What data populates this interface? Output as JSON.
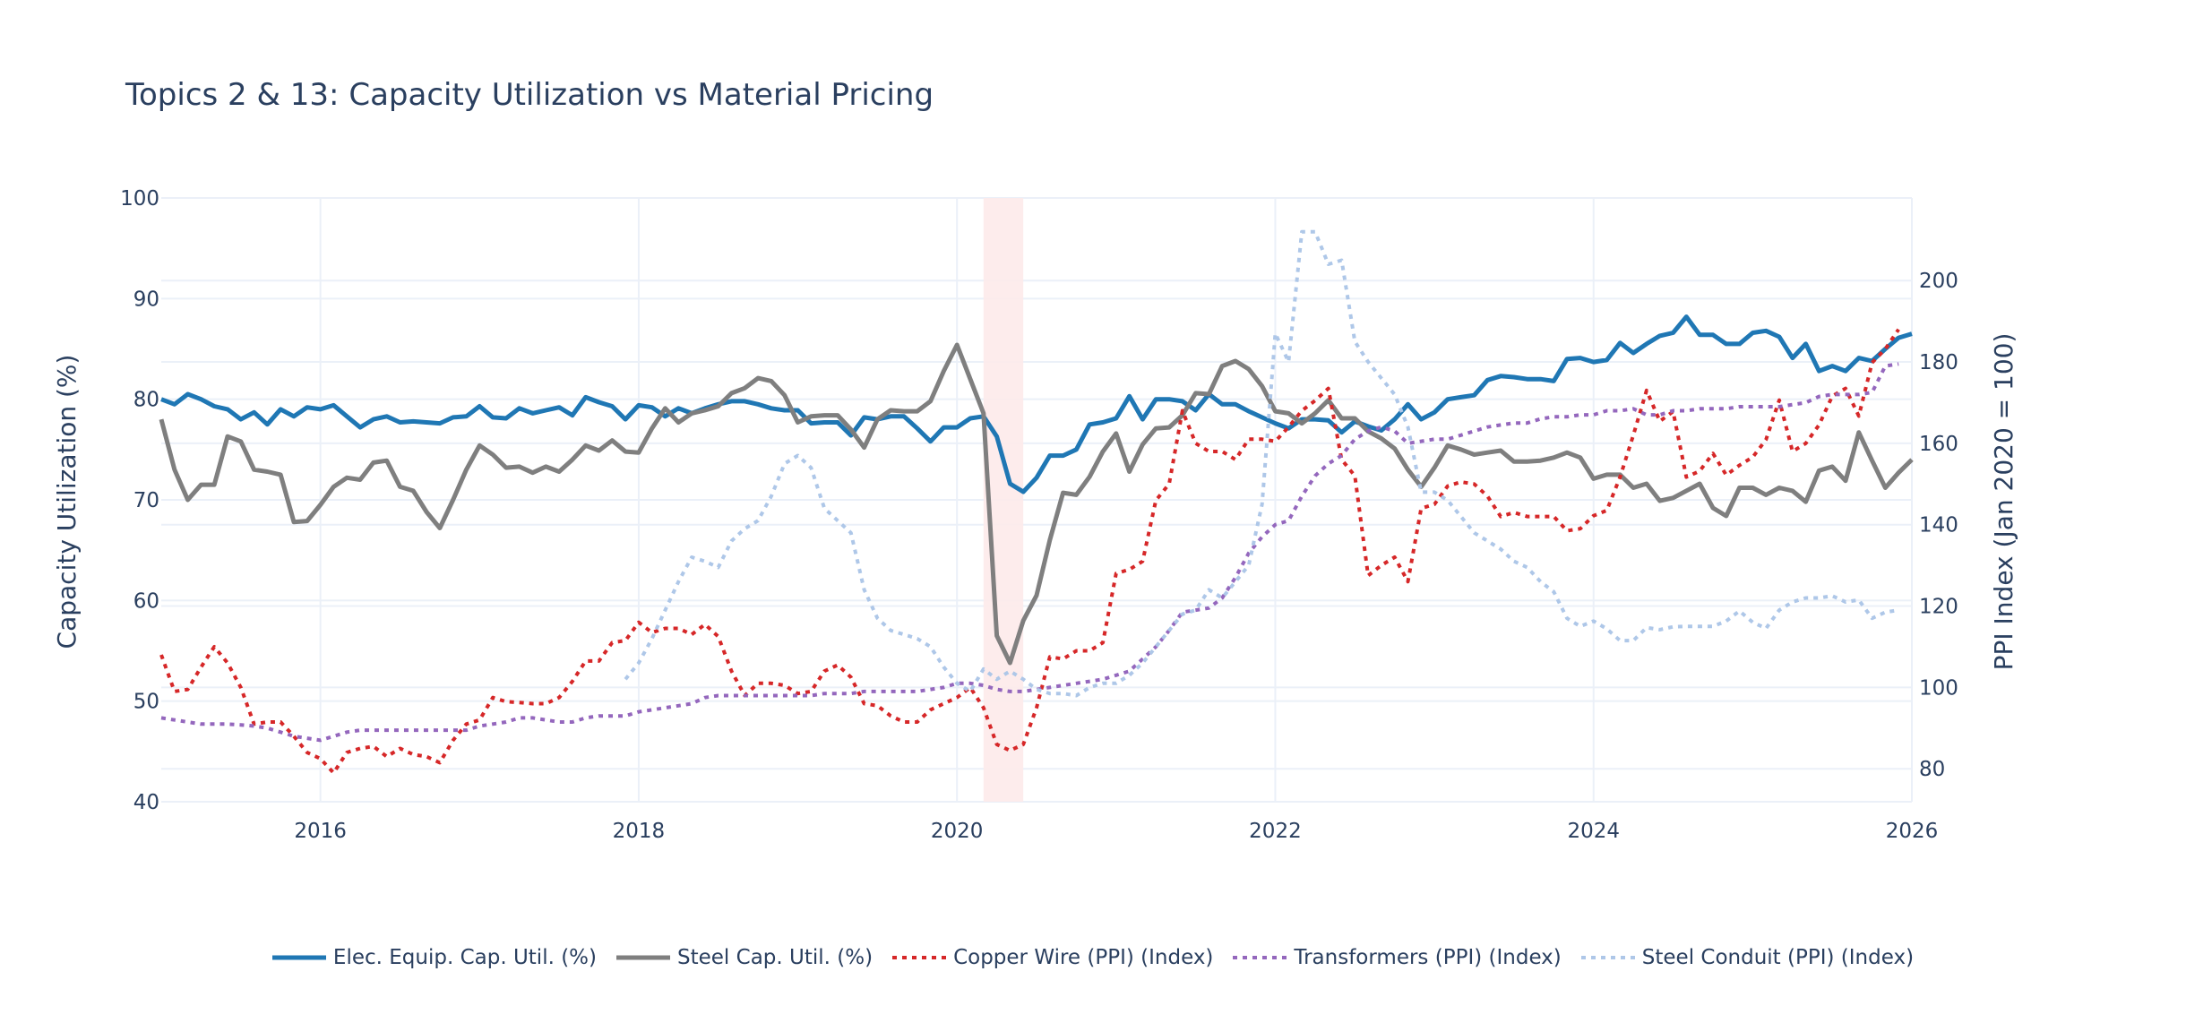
{
  "chart_data": {
    "type": "line",
    "title": "Topics 2 & 13: Capacity Utilization vs Material Pricing",
    "ylabel": "Capacity Utilization (%)",
    "y2label": "PPI Index (Jan 2020 = 100)",
    "xlim": [
      "2015-01",
      "2026-01"
    ],
    "ylim": [
      40,
      100
    ],
    "y2lim": [
      71.9,
      220.3
    ],
    "xticks": [
      "2016",
      "2018",
      "2020",
      "2022",
      "2024",
      "2026"
    ],
    "yticks": [
      "40",
      "50",
      "60",
      "70",
      "80",
      "90",
      "100"
    ],
    "y2ticks": [
      "80",
      "100",
      "120",
      "140",
      "160",
      "180",
      "200"
    ],
    "grid": true,
    "legend_position": "bottom",
    "shaded_period": {
      "start": "2020-03",
      "end": "2020-05",
      "color": "#fdeaea"
    },
    "x": [
      "2015-01",
      "2015-02",
      "2015-03",
      "2015-04",
      "2015-05",
      "2015-06",
      "2015-07",
      "2015-08",
      "2015-09",
      "2015-10",
      "2015-11",
      "2015-12",
      "2016-01",
      "2016-02",
      "2016-03",
      "2016-04",
      "2016-05",
      "2016-06",
      "2016-07",
      "2016-08",
      "2016-09",
      "2016-10",
      "2016-11",
      "2016-12",
      "2017-01",
      "2017-02",
      "2017-03",
      "2017-04",
      "2017-05",
      "2017-06",
      "2017-07",
      "2017-08",
      "2017-09",
      "2017-10",
      "2017-11",
      "2017-12",
      "2018-01",
      "2018-02",
      "2018-03",
      "2018-04",
      "2018-05",
      "2018-06",
      "2018-07",
      "2018-08",
      "2018-09",
      "2018-10",
      "2018-11",
      "2018-12",
      "2019-01",
      "2019-02",
      "2019-03",
      "2019-04",
      "2019-05",
      "2019-06",
      "2019-07",
      "2019-08",
      "2019-09",
      "2019-10",
      "2019-11",
      "2019-12",
      "2020-01",
      "2020-02",
      "2020-03",
      "2020-04",
      "2020-05",
      "2020-06",
      "2020-07",
      "2020-08",
      "2020-09",
      "2020-10",
      "2020-11",
      "2020-12",
      "2021-01",
      "2021-02",
      "2021-03",
      "2021-04",
      "2021-05",
      "2021-06",
      "2021-07",
      "2021-08",
      "2021-09",
      "2021-10",
      "2021-11",
      "2021-12",
      "2022-01",
      "2022-02",
      "2022-03",
      "2022-04",
      "2022-05",
      "2022-06",
      "2022-07",
      "2022-08",
      "2022-09",
      "2022-10",
      "2022-11",
      "2022-12",
      "2023-01",
      "2023-02",
      "2023-03",
      "2023-04",
      "2023-05",
      "2023-06",
      "2023-07",
      "2023-08",
      "2023-09",
      "2023-10",
      "2023-11",
      "2023-12",
      "2024-01",
      "2024-02",
      "2024-03",
      "2024-04",
      "2024-05",
      "2024-06",
      "2024-07",
      "2024-08",
      "2024-09",
      "2024-10",
      "2024-11",
      "2024-12",
      "2025-01",
      "2025-02",
      "2025-03",
      "2025-04",
      "2025-05",
      "2025-06",
      "2025-07",
      "2025-08",
      "2025-09",
      "2025-10",
      "2025-11",
      "2025-12",
      "2026-01"
    ],
    "series": [
      {
        "name": "Elec. Equip. Cap. Util. (%)",
        "axis": "left",
        "color": "#1f77b4",
        "dash": "solid",
        "values": [
          80,
          79.5,
          80.5,
          80,
          79.3,
          79,
          78,
          78.7,
          77.5,
          79,
          78.3,
          79.2,
          79,
          79.4,
          78.3,
          77.2,
          78,
          78.3,
          77.7,
          77.8,
          77.7,
          77.6,
          78.2,
          78.3,
          79.3,
          78.2,
          78.1,
          79.1,
          78.6,
          78.9,
          79.2,
          78.4,
          80.2,
          79.7,
          79.3,
          78,
          79.4,
          79.2,
          78.3,
          79.1,
          78.6,
          79.1,
          79.5,
          79.8,
          79.8,
          79.5,
          79.1,
          78.9,
          78.9,
          77.6,
          77.7,
          77.7,
          76.4,
          78.2,
          78,
          78.3,
          78.3,
          77.1,
          75.8,
          77.2,
          77.2,
          78.1,
          78.3,
          76.3,
          71.6,
          70.8,
          72.2,
          74.4,
          74.4,
          75,
          77.5,
          77.7,
          78.1,
          80.3,
          78,
          80,
          80,
          79.8,
          78.9,
          80.5,
          79.5,
          79.5,
          78.8,
          78.2,
          77.6,
          77.1,
          78,
          78,
          77.9,
          76.7,
          77.8,
          77.3,
          76.9,
          78,
          79.5,
          78,
          78.7,
          80,
          80.2,
          80.4,
          81.9,
          82.3,
          82.2,
          82,
          82,
          81.8,
          84,
          84.1,
          83.7,
          83.9,
          85.6,
          84.6,
          85.5,
          86.3,
          86.6,
          88.2,
          86.4,
          86.4,
          85.5,
          85.5,
          86.6,
          86.8,
          86.2,
          84.1,
          85.5,
          82.8,
          83.3,
          82.8,
          84.1,
          83.8,
          85,
          86.1,
          86.5
        ]
      },
      {
        "name": "Steel Cap. Util. (%)",
        "axis": "left",
        "color": "#7f7f7f",
        "dash": "solid",
        "values": [
          78,
          73,
          70,
          71.5,
          71.5,
          76.3,
          75.8,
          73,
          72.8,
          72.5,
          67.8,
          67.9,
          69.5,
          71.3,
          72.2,
          72,
          73.7,
          73.9,
          71.3,
          70.9,
          68.8,
          67.2,
          70,
          73,
          75.4,
          74.5,
          73.2,
          73.3,
          72.7,
          73.3,
          72.8,
          74,
          75.4,
          74.9,
          75.9,
          74.8,
          74.7,
          77.1,
          79.1,
          77.7,
          78.6,
          78.9,
          79.3,
          80.6,
          81.1,
          82.1,
          81.8,
          80.4,
          77.7,
          78.3,
          78.4,
          78.4,
          77,
          75.2,
          78,
          78.9,
          78.8,
          78.8,
          79.8,
          82.8,
          85.4,
          82,
          78.6,
          56.5,
          53.8,
          58,
          60.5,
          66,
          70.7,
          70.5,
          72.3,
          74.8,
          76.6,
          72.8,
          75.5,
          77.1,
          77.2,
          78.4,
          80.6,
          80.5,
          83.3,
          83.8,
          83,
          81.3,
          78.8,
          78.6,
          77.6,
          78.6,
          79.9,
          78.1,
          78.1,
          76.8,
          76.1,
          75.1,
          73,
          71.3,
          73.2,
          75.4,
          75,
          74.5,
          74.7,
          74.9,
          73.8,
          73.8,
          73.9,
          74.2,
          74.7,
          74.2,
          72.1,
          72.5,
          72.5,
          71.2,
          71.6,
          69.9,
          70.2,
          70.9,
          71.6,
          69.2,
          68.4,
          71.2,
          71.2,
          70.5,
          71.2,
          70.9,
          69.8,
          72.9,
          73.3,
          71.9,
          76.7,
          73.9,
          71.2,
          72.7,
          74.0
        ]
      },
      {
        "name": "Copper Wire (PPI) (Index)",
        "axis": "right",
        "color": "#d62728",
        "dash": "dot",
        "values": [
          108,
          99,
          99.5,
          105,
          110,
          106,
          100,
          91,
          91.5,
          91.5,
          88,
          84,
          82.5,
          79,
          84,
          85,
          85.5,
          83,
          85,
          83.5,
          83,
          81.5,
          87,
          91,
          92,
          97.5,
          96.5,
          96.3,
          96,
          96,
          97.5,
          101.5,
          106.5,
          106.5,
          111,
          111.5,
          116,
          113.5,
          114.5,
          114.5,
          113,
          115.5,
          112.5,
          104,
          98,
          101,
          101,
          100.5,
          98.5,
          99,
          104,
          105.5,
          102.5,
          96,
          95.5,
          93,
          91.5,
          91.5,
          94.5,
          96,
          97.5,
          100,
          95,
          86,
          84.5,
          86,
          95,
          107.5,
          107,
          109,
          109,
          111,
          128,
          129,
          131,
          146,
          150,
          168,
          160,
          158,
          158,
          156,
          161,
          161,
          160.5,
          164,
          168,
          170.5,
          173.5,
          156,
          152,
          127.5,
          130,
          132,
          126,
          144,
          145,
          149.5,
          150.5,
          150,
          147,
          142,
          143,
          142,
          142,
          142,
          138.5,
          139,
          142.2,
          143.5,
          151.7,
          162,
          173,
          165.4,
          167.8,
          151.7,
          153.2,
          157.5,
          152.2,
          154.6,
          156.6,
          160.9,
          170.6,
          158,
          160,
          164.5,
          171.6,
          173.5,
          166.7,
          179.8,
          183.2,
          188,
          null
        ]
      },
      {
        "name": "Transformers (PPI) (Index)",
        "axis": "right",
        "color": "#9467bd",
        "dash": "dot",
        "values": [
          92.5,
          92,
          91.5,
          91,
          91,
          91,
          90.8,
          90.5,
          90,
          89,
          88,
          87.5,
          87,
          88,
          89,
          89.5,
          89.5,
          89.5,
          89.5,
          89.5,
          89.5,
          89.5,
          89.5,
          89.5,
          90.5,
          91,
          91.5,
          92.5,
          92.5,
          92,
          91.5,
          91.5,
          92.5,
          93,
          93,
          93,
          94,
          94.5,
          95,
          95.5,
          96,
          97.5,
          98,
          98,
          98,
          98,
          98,
          98,
          98,
          98,
          98.5,
          98.5,
          98.5,
          99,
          99,
          99,
          99,
          99,
          99.5,
          100,
          101,
          101,
          100.5,
          99.5,
          99,
          99,
          99.5,
          100,
          100.5,
          101,
          101.5,
          102,
          103,
          104,
          107,
          110,
          114,
          118.5,
          119,
          119.5,
          122,
          127,
          133,
          137,
          140,
          141,
          147,
          152,
          155,
          157,
          161,
          163,
          164,
          163,
          160,
          160.5,
          161,
          161,
          162,
          163,
          164,
          164.5,
          165,
          165,
          166,
          166.5,
          166.5,
          167,
          167,
          168,
          168,
          168.5,
          167,
          167,
          168,
          168,
          168.5,
          168.5,
          168.5,
          169,
          169,
          169,
          169,
          169.5,
          170,
          171.5,
          172,
          172,
          172,
          172.5,
          179,
          179.5,
          null
        ]
      },
      {
        "name": "Steel Conduit (PPI) (Index)",
        "axis": "right",
        "color": "#aec7e8",
        "dash": "dot",
        "values": [
          null,
          null,
          null,
          null,
          null,
          null,
          null,
          null,
          null,
          null,
          null,
          null,
          null,
          null,
          null,
          null,
          null,
          null,
          null,
          null,
          null,
          null,
          null,
          null,
          null,
          null,
          null,
          null,
          null,
          null,
          null,
          null,
          null,
          null,
          null,
          102,
          106,
          112,
          119,
          126,
          132,
          131,
          129.5,
          136,
          139,
          141,
          147,
          155,
          157,
          154,
          144,
          141,
          138,
          124,
          117,
          114,
          113,
          112,
          110,
          105,
          101,
          99,
          104.5,
          102,
          104,
          102,
          99.5,
          98.5,
          98.5,
          98,
          100,
          101,
          101,
          103,
          106,
          110,
          114,
          118,
          119,
          124,
          122,
          126,
          130,
          145,
          187,
          180,
          212,
          212,
          204,
          205,
          185,
          180,
          176,
          172,
          164,
          148,
          148,
          146,
          142,
          138,
          136,
          134,
          131,
          129.5,
          126,
          123.5,
          117,
          115,
          116.3,
          114.4,
          111.5,
          111.5,
          114.7,
          114.2,
          114.9,
          115,
          115,
          115,
          116.3,
          118.8,
          116,
          114.5,
          119,
          121,
          122,
          122,
          122.5,
          121,
          121.5,
          117,
          118.5,
          119,
          null
        ]
      }
    ]
  }
}
